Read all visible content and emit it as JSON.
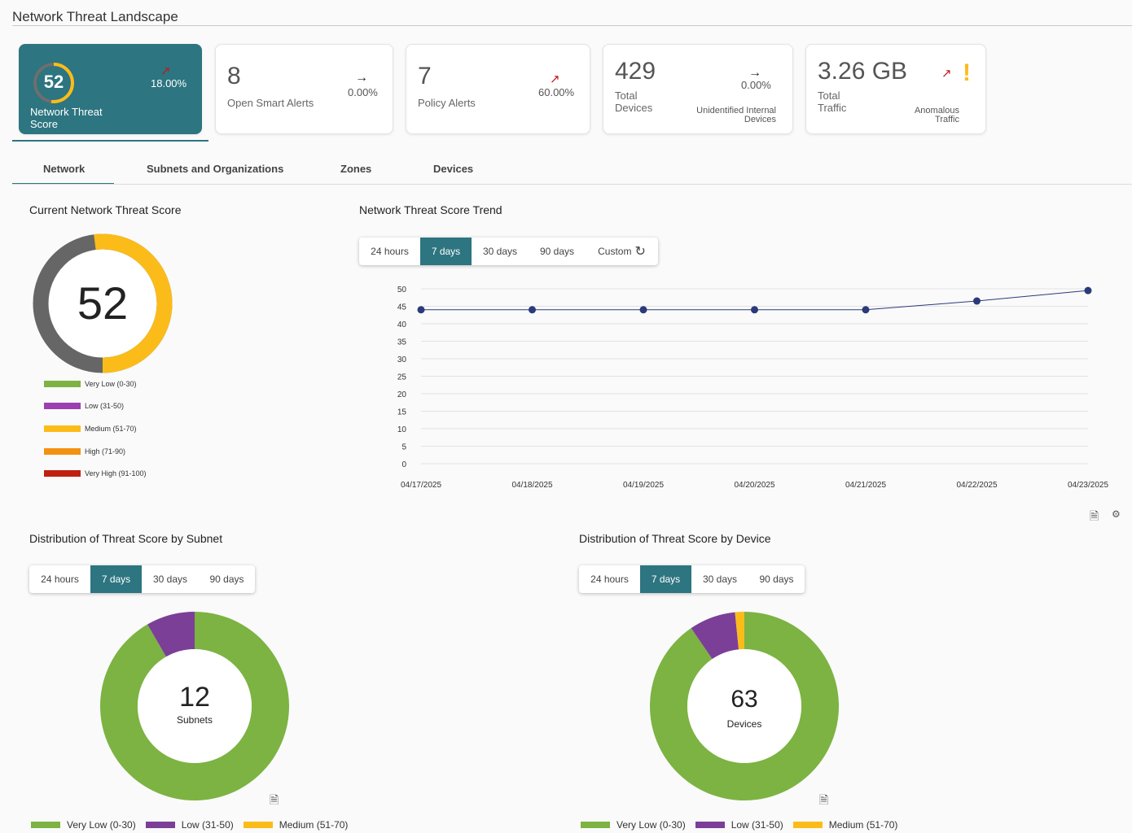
{
  "page": {
    "title": "Network Threat Landscape"
  },
  "kpis": {
    "score": {
      "value": "52",
      "label": "Network Threat Score",
      "pct": "18.00%",
      "trend": "up",
      "score_fraction": 0.52
    },
    "smart_alerts": {
      "value": "8",
      "label": "Open Smart Alerts",
      "pct": "0.00%",
      "trend": "flat"
    },
    "policy_alerts": {
      "value": "7",
      "label": "Policy Alerts",
      "pct": "60.00%",
      "trend": "up"
    },
    "devices": {
      "value": "429",
      "label": "Total Devices",
      "pct": "0.00%",
      "trend": "flat",
      "note": "Unidentified Internal Devices"
    },
    "traffic": {
      "value": "3.26 GB",
      "label": "Total Traffic",
      "note": "Anomalous Traffic",
      "trend": "up",
      "warning": "!"
    }
  },
  "tabs": [
    "Network",
    "Subnets and Organizations",
    "Zones",
    "Devices"
  ],
  "current_score": {
    "title": "Current Network Threat Score",
    "value": "52",
    "legend": [
      {
        "label": "Very Low (0-30)",
        "color": "#7cb342"
      },
      {
        "label": "Low (31-50)",
        "color": "#9c3fb0"
      },
      {
        "label": "Medium (51-70)",
        "color": "#fbbc1a"
      },
      {
        "label": "High (71-90)",
        "color": "#f39112"
      },
      {
        "label": "Very High (91-100)",
        "color": "#c0200f"
      }
    ]
  },
  "trend": {
    "title": "Network Threat Score Trend",
    "ranges": [
      "24 hours",
      "7 days",
      "30 days",
      "90 days"
    ],
    "custom_label": "Custom",
    "active_range": "7 days"
  },
  "chart_data": [
    {
      "type": "line",
      "title": "Network Threat Score Trend",
      "x": [
        "04/17/2025",
        "04/18/2025",
        "04/19/2025",
        "04/20/2025",
        "04/21/2025",
        "04/22/2025",
        "04/23/2025"
      ],
      "series": [
        {
          "values": [
            44,
            44,
            44,
            44,
            44,
            46.5,
            49.5
          ]
        }
      ],
      "yticks": [
        0,
        5,
        10,
        15,
        20,
        25,
        30,
        35,
        40,
        45,
        50
      ],
      "ylim": [
        0,
        50
      ],
      "grid": true,
      "color": "#2b3a7a"
    },
    {
      "type": "pie",
      "title": "Distribution of Threat Score by Subnet",
      "center_value": "12",
      "center_label": "Subnets",
      "slices": [
        {
          "label": "Very Low (0-30)",
          "value": 11,
          "color": "#7cb342"
        },
        {
          "label": "Low (31-50)",
          "value": 1,
          "color": "#7b3f98"
        },
        {
          "label": "Medium (51-70)",
          "value": 0,
          "color": "#fbbc1a"
        }
      ]
    },
    {
      "type": "pie",
      "title": "Distribution of Threat Score by Device",
      "center_value": "63",
      "center_label": "Devices",
      "slices": [
        {
          "label": "Very Low (0-30)",
          "value": 57,
          "color": "#7cb342"
        },
        {
          "label": "Low (31-50)",
          "value": 5,
          "color": "#7b3f98"
        },
        {
          "label": "Medium (51-70)",
          "value": 1,
          "color": "#fbbc1a"
        }
      ]
    }
  ],
  "subnet_dist": {
    "title": "Distribution of Threat Score by Subnet",
    "ranges": [
      "24 hours",
      "7 days",
      "30 days",
      "90 days"
    ],
    "active_range": "7 days",
    "legend": [
      "Very Low (0-30)",
      "Low (31-50)",
      "Medium (51-70)"
    ]
  },
  "device_dist": {
    "title": "Distribution of Threat Score by Device",
    "ranges": [
      "24 hours",
      "7 days",
      "30 days",
      "90 days"
    ],
    "active_range": "7 days",
    "legend": [
      "Very Low (0-30)",
      "Low (31-50)",
      "Medium (51-70)"
    ]
  },
  "icons": {
    "export": "file-download-icon",
    "settings": "gear-icon",
    "refresh": "clock-refresh-icon"
  }
}
